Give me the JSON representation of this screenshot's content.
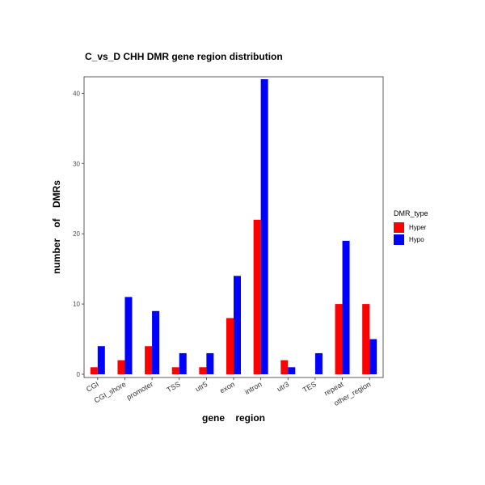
{
  "chart_data": {
    "type": "bar",
    "title": "C_vs_D  CHH  DMR  gene region  distribution",
    "xlabel": "gene    region",
    "ylabel": "number    of    DMRs",
    "categories": [
      "CGI",
      "CGI_shore",
      "promoter",
      "TSS",
      "utr5",
      "exon",
      "intron",
      "utr3",
      "TES",
      "repeat",
      "other_region"
    ],
    "series": [
      {
        "name": "Hyper",
        "color": "#ff0000",
        "values": [
          1,
          2,
          4,
          1,
          1,
          8,
          22,
          2,
          0,
          10,
          10
        ]
      },
      {
        "name": "Hypo",
        "color": "#0000ff",
        "values": [
          4,
          11,
          9,
          3,
          3,
          14,
          42,
          1,
          3,
          19,
          5
        ]
      }
    ],
    "ylim": [
      0,
      42
    ],
    "yticks": [
      0,
      10,
      20,
      30,
      40
    ],
    "legend": {
      "title": "DMR_type",
      "position": "right"
    },
    "grid": false
  }
}
